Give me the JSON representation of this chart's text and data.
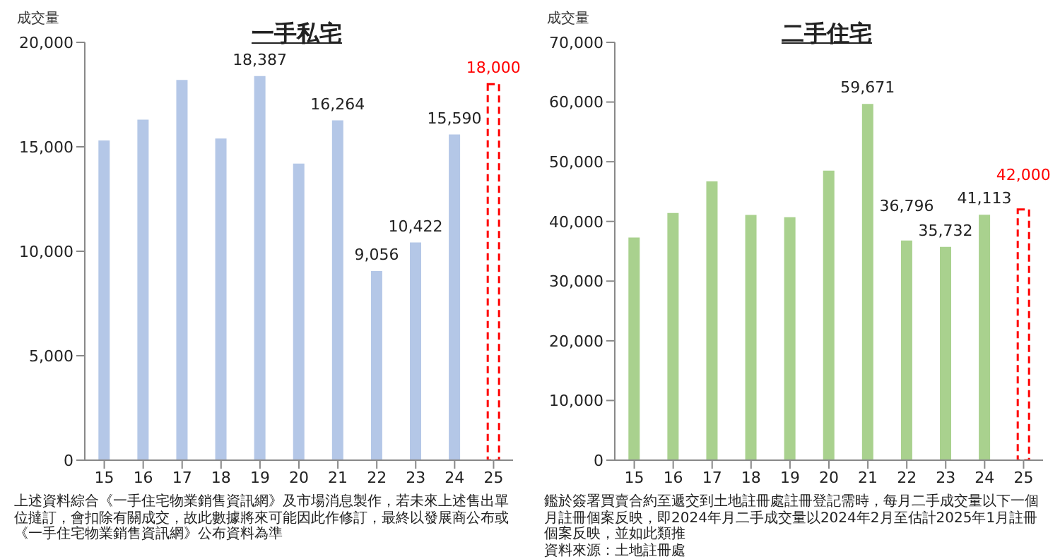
{
  "chart_data": [
    {
      "type": "bar",
      "title": "一手私宅",
      "ylabel": "成交量",
      "categories": [
        "15",
        "16",
        "17",
        "18",
        "19",
        "20",
        "21",
        "22",
        "23",
        "24",
        "25"
      ],
      "stacked": true,
      "ylim": [
        0,
        20000
      ],
      "yticks": [
        {
          "value": 0,
          "label": "0"
        },
        {
          "value": 5000,
          "label": "5,000"
        },
        {
          "value": 10000,
          "label": "10,000"
        },
        {
          "value": 15000,
          "label": "15,000"
        },
        {
          "value": 20000,
          "label": "20,000"
        }
      ],
      "series": [
        {
          "color": "#b4c7e7",
          "values": [
            15300,
            16300,
            18200,
            15400,
            18387,
            14200,
            16264,
            9056,
            10422,
            15590,
            null
          ],
          "value_labels": [
            null,
            null,
            null,
            null,
            "18,387",
            null,
            "16,264",
            "9,056",
            "10,422",
            "15,590",
            null
          ]
        },
        {
          "color": "#ff0000",
          "line_style": "dashed",
          "values": [
            null,
            null,
            null,
            null,
            null,
            null,
            null,
            null,
            null,
            null,
            18000
          ],
          "value_labels": [
            null,
            null,
            null,
            null,
            null,
            null,
            null,
            null,
            null,
            null,
            "18,000"
          ]
        }
      ],
      "annotations": [
        "上述資料綜合《一手住宅物業銷售資訊網》及市場消息製作，若未來上述售出單位撻訂，會扣除有關成交，故此數據將來可能因此作修訂，最終以發展商公布或《一手住宅物業銷售資訊網》公布資料為準"
      ]
    },
    {
      "type": "bar",
      "title": "二手住宅",
      "ylabel": "成交量",
      "categories": [
        "15",
        "16",
        "17",
        "18",
        "19",
        "20",
        "21",
        "22",
        "23",
        "24",
        "25"
      ],
      "stacked": true,
      "ylim": [
        0,
        70000
      ],
      "yticks": [
        {
          "value": 0,
          "label": "0"
        },
        {
          "value": 10000,
          "label": "10,000"
        },
        {
          "value": 20000,
          "label": "20,000"
        },
        {
          "value": 30000,
          "label": "30,000"
        },
        {
          "value": 40000,
          "label": "40,000"
        },
        {
          "value": 50000,
          "label": "50,000"
        },
        {
          "value": 60000,
          "label": "60,000"
        },
        {
          "value": 70000,
          "label": "70,000"
        }
      ],
      "series": [
        {
          "color": "#a9d18e",
          "values": [
            37300,
            41400,
            46700,
            41100,
            40700,
            48500,
            59671,
            36796,
            35732,
            41113,
            null
          ],
          "value_labels": [
            null,
            null,
            null,
            null,
            null,
            null,
            "59,671",
            "36,796",
            "35,732",
            "41,113",
            null
          ]
        },
        {
          "color": "#ff0000",
          "line_style": "dashed",
          "values": [
            null,
            null,
            null,
            null,
            null,
            null,
            null,
            null,
            null,
            null,
            42000
          ],
          "value_labels": [
            null,
            null,
            null,
            null,
            null,
            null,
            null,
            null,
            null,
            null,
            "42,000"
          ]
        }
      ],
      "annotations": [
        "鑑於簽署買賣合約至遞交到土地註冊處註冊登記需時，每月二手成交量以下一個月註冊個案反映，即2024年月二手成交量以2024年2月至估計2025年1月註冊個案反映，並如此類推",
        "資料來源：土地註冊處"
      ]
    }
  ]
}
